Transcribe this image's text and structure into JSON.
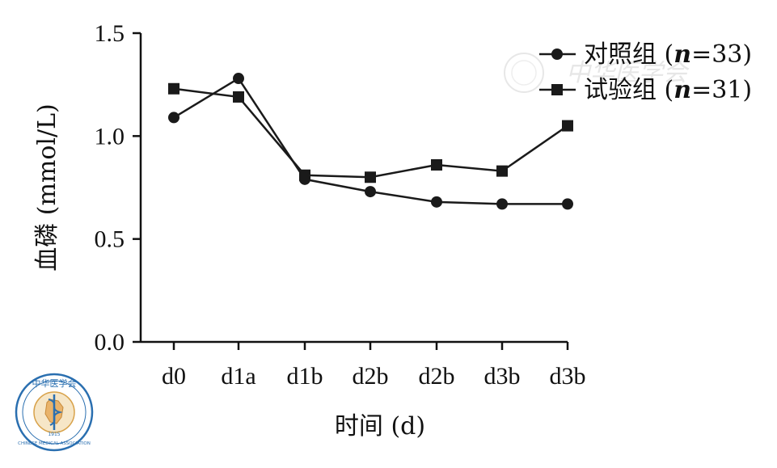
{
  "chart_data": {
    "type": "line",
    "categories": [
      "d0",
      "d1a",
      "d1b",
      "d2b",
      "d2b",
      "d3b",
      "d3b"
    ],
    "series": [
      {
        "name": "对照组 (n=33)",
        "name_prefix": "对照组 (",
        "name_n": "n",
        "name_suffix": "=33)",
        "marker": "circle",
        "values": [
          1.09,
          1.28,
          0.79,
          0.73,
          0.68,
          0.67,
          0.67
        ]
      },
      {
        "name": "试验组 (n=31)",
        "name_prefix": "试验组 (",
        "name_n": "n",
        "name_suffix": "=31)",
        "marker": "square",
        "values": [
          1.23,
          1.19,
          0.81,
          0.8,
          0.86,
          0.83,
          1.05
        ]
      }
    ],
    "xlabel": "时间 (d)",
    "ylabel": "血磷 (mmol/L)",
    "ylim": [
      0,
      1.5
    ],
    "yticks": [
      "0.0",
      "0.5",
      "1.0",
      "1.5"
    ],
    "ytick_values": [
      0,
      0.5,
      1.0,
      1.5
    ],
    "grid": false,
    "legend_position": "top-right",
    "line_color": "#1a1a1a"
  },
  "logo": {
    "icon": "chinese-medical-association-logo-icon",
    "text_top": "中华医学会",
    "text_bottom": "CHINESE MEDICAL ASSOCIATION",
    "year": "1915",
    "color": "#2a6fb0"
  },
  "watermark": {
    "icon": "chinese-medical-association-watermark-icon",
    "text": "中华医学会"
  }
}
